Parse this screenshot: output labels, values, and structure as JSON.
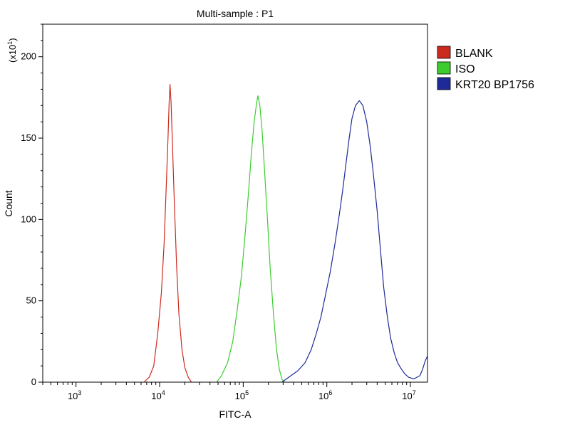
{
  "chart_data": {
    "type": "line",
    "title": "Multi-sample : P1",
    "xlabel": "FITC-A",
    "ylabel": "Count",
    "y_multiplier_label": "(x10",
    "y_multiplier_exp": "1",
    "x_scale": "log",
    "xlim": [
      400,
      16000000
    ],
    "ylim": [
      0,
      220
    ],
    "x_ticks": [
      {
        "value": 1000,
        "base": "10",
        "exp": "3"
      },
      {
        "value": 10000,
        "base": "10",
        "exp": "4"
      },
      {
        "value": 100000,
        "base": "10",
        "exp": "5"
      },
      {
        "value": 1000000,
        "base": "10",
        "exp": "6"
      },
      {
        "value": 10000000,
        "base": "10",
        "exp": "7"
      }
    ],
    "y_ticks": [
      0,
      50,
      100,
      150,
      200
    ],
    "legend_position": "right",
    "series": [
      {
        "name": "BLANK",
        "color": "#cc2a1e",
        "points": [
          [
            6500,
            0
          ],
          [
            7500,
            3
          ],
          [
            8500,
            10
          ],
          [
            9500,
            30
          ],
          [
            10500,
            55
          ],
          [
            11300,
            85
          ],
          [
            12000,
            120
          ],
          [
            12600,
            150
          ],
          [
            13000,
            172
          ],
          [
            13300,
            183
          ],
          [
            13700,
            172
          ],
          [
            14200,
            148
          ],
          [
            15000,
            110
          ],
          [
            16000,
            70
          ],
          [
            17000,
            42
          ],
          [
            18500,
            20
          ],
          [
            20000,
            9
          ],
          [
            22000,
            3
          ],
          [
            24000,
            0
          ]
        ]
      },
      {
        "name": "ISO",
        "color": "#3ccc2e",
        "points": [
          [
            48000,
            0
          ],
          [
            55000,
            4
          ],
          [
            65000,
            12
          ],
          [
            75000,
            25
          ],
          [
            85000,
            45
          ],
          [
            95000,
            65
          ],
          [
            105000,
            90
          ],
          [
            115000,
            115
          ],
          [
            125000,
            140
          ],
          [
            135000,
            160
          ],
          [
            145000,
            172
          ],
          [
            150000,
            176
          ],
          [
            158000,
            170
          ],
          [
            168000,
            155
          ],
          [
            180000,
            130
          ],
          [
            195000,
            100
          ],
          [
            210000,
            70
          ],
          [
            230000,
            42
          ],
          [
            250000,
            20
          ],
          [
            270000,
            8
          ],
          [
            290000,
            2
          ],
          [
            310000,
            0
          ]
        ]
      },
      {
        "name": "KRT20 BP1756",
        "color": "#1e2a99",
        "points": [
          [
            290000,
            0
          ],
          [
            350000,
            3
          ],
          [
            450000,
            7
          ],
          [
            550000,
            12
          ],
          [
            650000,
            20
          ],
          [
            750000,
            30
          ],
          [
            850000,
            40
          ],
          [
            950000,
            52
          ],
          [
            1100000,
            68
          ],
          [
            1250000,
            85
          ],
          [
            1400000,
            102
          ],
          [
            1550000,
            118
          ],
          [
            1700000,
            135
          ],
          [
            1850000,
            150
          ],
          [
            2000000,
            162
          ],
          [
            2200000,
            170
          ],
          [
            2450000,
            173
          ],
          [
            2700000,
            170
          ],
          [
            3000000,
            160
          ],
          [
            3300000,
            145
          ],
          [
            3600000,
            128
          ],
          [
            4000000,
            105
          ],
          [
            4400000,
            80
          ],
          [
            4800000,
            58
          ],
          [
            5300000,
            40
          ],
          [
            5800000,
            27
          ],
          [
            6400000,
            18
          ],
          [
            7000000,
            12
          ],
          [
            7800000,
            8
          ],
          [
            8600000,
            5
          ],
          [
            9500000,
            3
          ],
          [
            11000000,
            2
          ],
          [
            13000000,
            4
          ],
          [
            14000000,
            8
          ],
          [
            15000000,
            13
          ],
          [
            16000000,
            16
          ]
        ]
      }
    ]
  }
}
